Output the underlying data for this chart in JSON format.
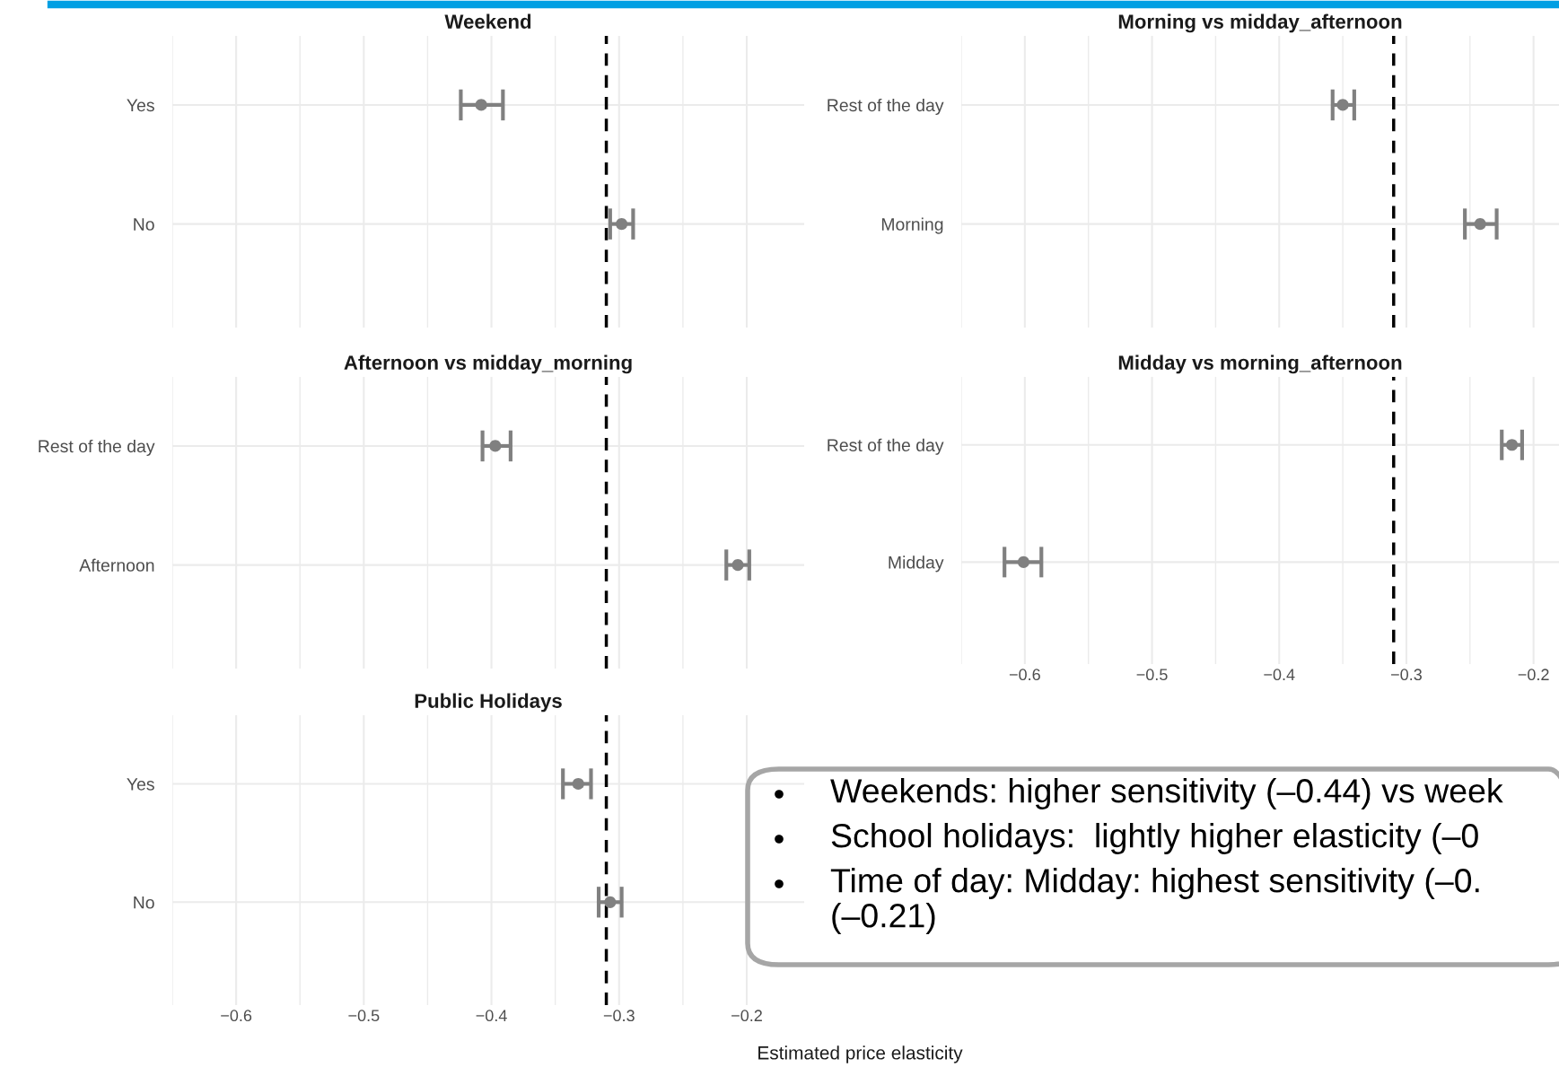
{
  "chart_data": [
    {
      "type": "scatter",
      "title": "Weekend",
      "orientation": "horizontal",
      "categories": [
        "Yes",
        "No"
      ],
      "values": [
        -0.408,
        -0.298
      ],
      "errors": [
        [
          -0.424,
          -0.391
        ],
        [
          -0.307,
          -0.289
        ]
      ],
      "color": "#808080",
      "marker": "circle",
      "xlim": [
        -0.65,
        -0.155
      ],
      "xticks": [
        -0.6,
        -0.5,
        -0.4,
        -0.3,
        -0.2
      ],
      "grid": true,
      "tick_labels": "y",
      "ref_lines": [
        {
          "axis": "x",
          "value": -0.31,
          "color": "#000000",
          "line_style": "dashed"
        }
      ]
    },
    {
      "type": "scatter",
      "title": "Morning vs midday_afternoon",
      "orientation": "horizontal",
      "categories": [
        "Rest of the day",
        "Morning"
      ],
      "values": [
        -0.35,
        -0.242
      ],
      "errors": [
        [
          -0.358,
          -0.341
        ],
        [
          -0.254,
          -0.229
        ]
      ],
      "color": "#808080",
      "marker": "circle",
      "xlim": [
        -0.65,
        -0.18
      ],
      "xticks": [
        -0.6,
        -0.5,
        -0.4,
        -0.3,
        -0.2
      ],
      "grid": true,
      "tick_labels": "y",
      "ref_lines": [
        {
          "axis": "x",
          "value": -0.31,
          "color": "#000000",
          "line_style": "dashed"
        }
      ]
    },
    {
      "type": "scatter",
      "title": "Afternoon vs midday_morning",
      "orientation": "horizontal",
      "categories": [
        "Rest of the day",
        "Afternoon"
      ],
      "values": [
        -0.397,
        -0.207
      ],
      "errors": [
        [
          -0.407,
          -0.385
        ],
        [
          -0.216,
          -0.198
        ]
      ],
      "color": "#808080",
      "marker": "circle",
      "xlim": [
        -0.65,
        -0.155
      ],
      "xticks": [
        -0.6,
        -0.5,
        -0.4,
        -0.3,
        -0.2
      ],
      "grid": true,
      "tick_labels": "y",
      "ref_lines": [
        {
          "axis": "x",
          "value": -0.31,
          "color": "#000000",
          "line_style": "dashed"
        }
      ]
    },
    {
      "type": "scatter",
      "title": "Midday vs morning_afternoon",
      "orientation": "horizontal",
      "categories": [
        "Rest of the day",
        "Midday"
      ],
      "values": [
        -0.217,
        -0.601
      ],
      "errors": [
        [
          -0.225,
          -0.209
        ],
        [
          -0.616,
          -0.587
        ]
      ],
      "color": "#808080",
      "marker": "circle",
      "xlim": [
        -0.65,
        -0.18
      ],
      "xticks": [
        -0.6,
        -0.5,
        -0.4,
        -0.3,
        -0.2
      ],
      "grid": true,
      "ref_lines": [
        {
          "axis": "x",
          "value": -0.31,
          "color": "#000000",
          "line_style": "dashed"
        }
      ]
    },
    {
      "type": "scatter",
      "title": "Public Holidays",
      "xlabel": "Estimated price elasticity",
      "orientation": "horizontal",
      "categories": [
        "Yes",
        "No"
      ],
      "values": [
        -0.332,
        -0.307
      ],
      "errors": [
        [
          -0.344,
          -0.322
        ],
        [
          -0.316,
          -0.298
        ]
      ],
      "color": "#808080",
      "marker": "circle",
      "xlim": [
        -0.65,
        -0.155
      ],
      "xticks": [
        -0.6,
        -0.5,
        -0.4,
        -0.3,
        -0.2
      ],
      "grid": true,
      "ref_lines": [
        {
          "axis": "x",
          "value": -0.31,
          "color": "#000000",
          "line_style": "dashed"
        }
      ]
    },
    {
      "type": "other",
      "annotations": [
        "Weekends: higher sensitivity (–0.44) vs week",
        "School holidays:  lightly higher elasticity (–0",
        "Time of day: Midday: highest sensitivity (–0.\n(–0.21)"
      ]
    }
  ]
}
